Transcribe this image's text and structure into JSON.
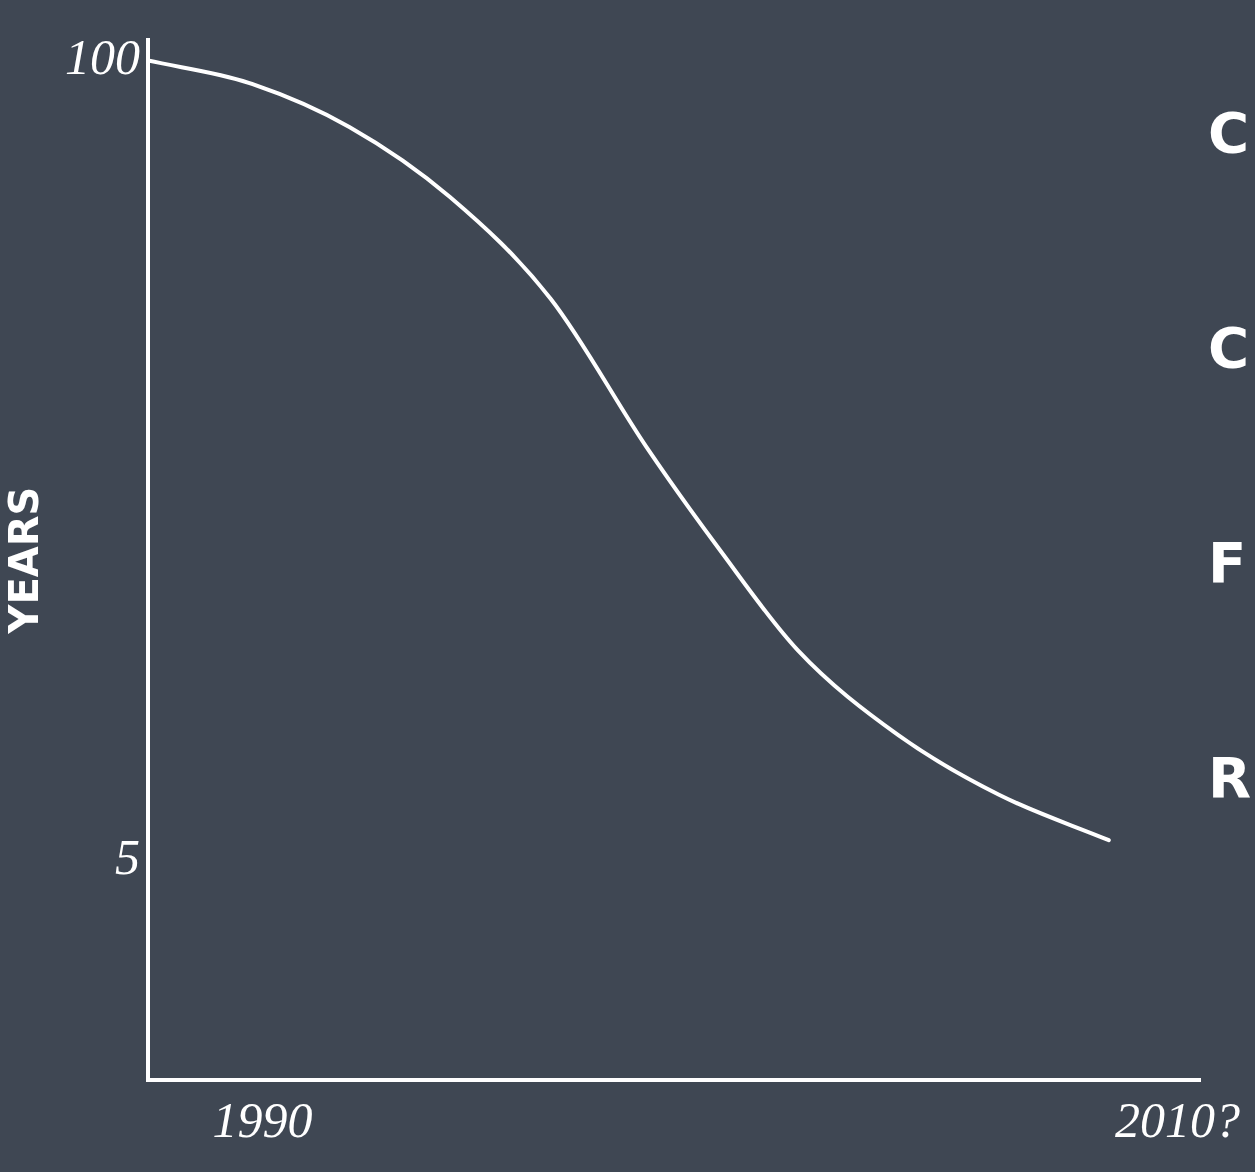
{
  "chart_data": {
    "type": "line",
    "ylabel": "YEARS",
    "log": "y",
    "x": [
      1987.5,
      1989.7,
      1991.9,
      1994.1,
      1996.3,
      1998.4,
      2000.0,
      2001.7,
      2003.9,
      2006.1,
      2008.5
    ],
    "series": [
      {
        "color": "#ffffff",
        "values": [
          100,
          92,
          78,
          60,
          41,
          23.5,
          16,
          11,
          8,
          6.4,
          5.4
        ]
      }
    ],
    "xlim": [
      1987.5,
      2010.5
    ],
    "xticks": [
      1990,
      {
        "value": 2010,
        "label": "2010?"
      }
    ],
    "ylim": [
      2.2,
      108
    ],
    "yticks": [
      5,
      100
    ],
    "grid": false,
    "legend": false,
    "marker": "none",
    "line_style": "solid",
    "annotations": [
      "C",
      "C",
      "F",
      "R"
    ]
  }
}
